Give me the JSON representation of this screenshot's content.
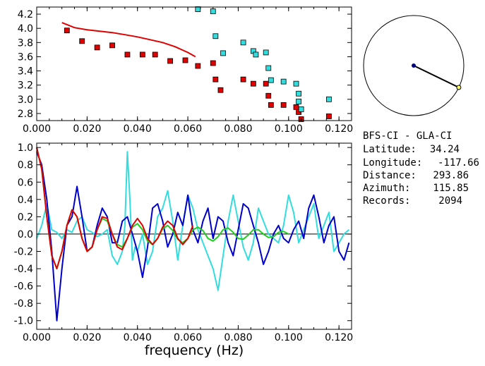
{
  "info_panel": {
    "station_pair": "BFS-CI  -  GLA-CI",
    "rows": [
      {
        "label": "Latitude:",
        "value": "34.24"
      },
      {
        "label": "Longitude:",
        "value": "-117.66"
      },
      {
        "label": "Distance:",
        "value": "293.86"
      },
      {
        "label": "Azimuth:",
        "value": "115.85"
      },
      {
        "label": "Records:",
        "value": "2094"
      }
    ]
  },
  "azimuth_dial": {
    "azimuth_deg": 115.85,
    "line_color": "#000000",
    "station_color": "#000080",
    "endpoint_color": "#ffff66"
  },
  "chart_data": [
    {
      "type": "scatter",
      "xlim": [
        0.0,
        0.125
      ],
      "ylim": [
        2.7,
        4.3
      ],
      "x_ticks": [
        0.0,
        0.02,
        0.04,
        0.06,
        0.08,
        0.1,
        0.12
      ],
      "x_tick_labels": [
        "0.000",
        "0.020",
        "0.040",
        "0.060",
        "0.080",
        "0.100",
        "0.120"
      ],
      "y_ticks": [
        2.8,
        3.0,
        3.2,
        3.4,
        3.6,
        3.8,
        4.0,
        4.2
      ],
      "y_tick_labels": [
        "2.8",
        "3.0",
        "3.2",
        "3.4",
        "3.6",
        "3.8",
        "4.0",
        "4.2"
      ],
      "series": [
        {
          "kind": "line",
          "color": "#e00000",
          "x": [
            0.01,
            0.015,
            0.02,
            0.025,
            0.03,
            0.035,
            0.04,
            0.045,
            0.05,
            0.055,
            0.06,
            0.063
          ],
          "y": [
            4.08,
            4.01,
            3.98,
            3.96,
            3.94,
            3.91,
            3.88,
            3.84,
            3.8,
            3.74,
            3.66,
            3.6
          ]
        },
        {
          "kind": "markers",
          "color": "#e00000",
          "x": [
            0.012,
            0.018,
            0.024,
            0.03,
            0.036,
            0.042,
            0.047,
            0.053,
            0.059,
            0.064,
            0.07,
            0.071,
            0.073,
            0.082,
            0.086,
            0.091,
            0.092,
            0.093,
            0.098,
            0.103,
            0.104,
            0.105,
            0.116
          ],
          "y": [
            3.97,
            3.82,
            3.73,
            3.76,
            3.63,
            3.63,
            3.63,
            3.54,
            3.55,
            3.47,
            3.51,
            3.28,
            3.13,
            3.28,
            3.22,
            3.22,
            3.05,
            2.92,
            2.92,
            2.89,
            2.82,
            2.72,
            2.76
          ]
        },
        {
          "kind": "markers",
          "color": "#33dddd",
          "x": [
            0.064,
            0.07,
            0.071,
            0.074,
            0.082,
            0.086,
            0.087,
            0.091,
            0.092,
            0.093,
            0.098,
            0.103,
            0.104,
            0.104,
            0.105,
            0.116
          ],
          "y": [
            4.27,
            4.24,
            3.89,
            3.65,
            3.8,
            3.68,
            3.63,
            3.66,
            3.44,
            3.27,
            3.25,
            3.22,
            3.08,
            2.97,
            2.86,
            3.0
          ]
        }
      ]
    },
    {
      "type": "line",
      "xlabel": "frequency  (Hz)",
      "xlim": [
        0.0,
        0.125
      ],
      "ylim": [
        -1.1,
        1.05
      ],
      "x_ticks": [
        0.0,
        0.02,
        0.04,
        0.06,
        0.08,
        0.1,
        0.12
      ],
      "x_tick_labels": [
        "0.000",
        "0.020",
        "0.040",
        "0.060",
        "0.080",
        "0.100",
        "0.120"
      ],
      "y_ticks": [
        1.0,
        0.8,
        0.6,
        0.4,
        0.2,
        0.0,
        -0.2,
        -0.4,
        -0.6,
        -0.8,
        -1.0
      ],
      "y_tick_labels": [
        "1.0",
        "0.8",
        "0.6",
        "0.4",
        "0.2",
        "0.0",
        "-0.2",
        "-0.4",
        "-0.6",
        "-0.8",
        "-1.0"
      ],
      "zero_line": true,
      "series": [
        {
          "color": "#33dddd",
          "x": [
            0.0,
            0.002,
            0.004,
            0.006,
            0.008,
            0.01,
            0.012,
            0.014,
            0.016,
            0.018,
            0.02,
            0.022,
            0.024,
            0.026,
            0.028,
            0.03,
            0.032,
            0.034,
            0.035,
            0.036,
            0.037,
            0.038,
            0.039,
            0.04,
            0.042,
            0.044,
            0.046,
            0.048,
            0.05,
            0.052,
            0.054,
            0.056,
            0.058,
            0.06,
            0.062,
            0.064,
            0.066,
            0.068,
            0.07,
            0.072,
            0.074,
            0.076,
            0.078,
            0.08,
            0.082,
            0.084,
            0.086,
            0.088,
            0.09,
            0.092,
            0.094,
            0.096,
            0.098,
            0.1,
            0.102,
            0.104,
            0.106,
            0.108,
            0.11,
            0.112,
            0.114,
            0.116,
            0.118,
            0.12,
            0.122,
            0.124
          ],
          "y": [
            -0.05,
            0.1,
            0.35,
            0.05,
            0.02,
            -0.05,
            0.05,
            0.02,
            0.15,
            0.2,
            0.05,
            0.02,
            -0.03,
            0.0,
            0.05,
            -0.25,
            -0.35,
            -0.2,
            0.1,
            0.95,
            0.4,
            -0.3,
            -0.15,
            -0.2,
            0.0,
            -0.35,
            -0.2,
            0.2,
            0.3,
            0.5,
            0.15,
            -0.3,
            0.1,
            0.45,
            0.3,
            0.05,
            -0.1,
            -0.25,
            -0.4,
            -0.65,
            -0.25,
            0.15,
            0.45,
            0.15,
            -0.15,
            -0.3,
            -0.1,
            0.3,
            0.15,
            0.0,
            -0.05,
            -0.1,
            0.1,
            0.45,
            0.25,
            -0.1,
            0.05,
            0.2,
            0.35,
            -0.05,
            0.1,
            0.25,
            -0.2,
            -0.1,
            0.0,
            0.05
          ]
        },
        {
          "color": "#0000cc",
          "x": [
            0.0,
            0.002,
            0.004,
            0.006,
            0.008,
            0.01,
            0.012,
            0.014,
            0.016,
            0.018,
            0.02,
            0.022,
            0.024,
            0.026,
            0.028,
            0.03,
            0.032,
            0.034,
            0.036,
            0.038,
            0.04,
            0.042,
            0.044,
            0.046,
            0.048,
            0.05,
            0.052,
            0.054,
            0.056,
            0.058,
            0.06,
            0.062,
            0.064,
            0.066,
            0.068,
            0.07,
            0.072,
            0.074,
            0.076,
            0.078,
            0.08,
            0.082,
            0.084,
            0.086,
            0.088,
            0.09,
            0.092,
            0.094,
            0.096,
            0.098,
            0.1,
            0.102,
            0.104,
            0.106,
            0.108,
            0.11,
            0.112,
            0.114,
            0.116,
            0.118,
            0.12,
            0.122,
            0.124
          ],
          "y": [
            0.95,
            0.8,
            0.4,
            -0.2,
            -1.0,
            -0.4,
            0.1,
            0.2,
            0.55,
            0.2,
            -0.2,
            -0.15,
            0.1,
            0.3,
            0.2,
            -0.1,
            -0.1,
            0.15,
            0.2,
            0.0,
            -0.2,
            -0.5,
            -0.15,
            0.3,
            0.35,
            0.15,
            -0.15,
            0.0,
            0.25,
            0.1,
            0.45,
            0.05,
            -0.1,
            0.15,
            0.3,
            -0.05,
            0.2,
            0.15,
            -0.1,
            -0.25,
            0.05,
            0.35,
            0.3,
            0.1,
            -0.1,
            -0.35,
            -0.2,
            0.0,
            0.1,
            -0.05,
            -0.1,
            0.05,
            0.15,
            -0.05,
            0.3,
            0.45,
            0.2,
            -0.1,
            0.1,
            0.2,
            -0.2,
            -0.3,
            -0.1
          ]
        },
        {
          "color": "#22cc22",
          "x": [
            0.0,
            0.002,
            0.004,
            0.006,
            0.008,
            0.01,
            0.012,
            0.014,
            0.016,
            0.018,
            0.02,
            0.022,
            0.024,
            0.026,
            0.028,
            0.03,
            0.032,
            0.034,
            0.036,
            0.038,
            0.04,
            0.042,
            0.044,
            0.046,
            0.048,
            0.05,
            0.052,
            0.054,
            0.056,
            0.058,
            0.06,
            0.062,
            0.064,
            0.066,
            0.068,
            0.07,
            0.072,
            0.074,
            0.076,
            0.078,
            0.08,
            0.082,
            0.084,
            0.086,
            0.088,
            0.09,
            0.092,
            0.094,
            0.096,
            0.098,
            0.1
          ],
          "y": [
            1.0,
            0.75,
            0.2,
            -0.25,
            -0.4,
            -0.2,
            0.1,
            0.28,
            0.2,
            -0.05,
            -0.2,
            -0.15,
            0.05,
            0.18,
            0.15,
            0.0,
            -0.12,
            -0.15,
            -0.05,
            0.08,
            0.12,
            0.05,
            -0.08,
            -0.12,
            -0.05,
            0.06,
            0.1,
            0.04,
            -0.06,
            -0.1,
            -0.05,
            0.05,
            0.08,
            0.04,
            -0.05,
            -0.08,
            -0.03,
            0.05,
            0.07,
            0.02,
            -0.05,
            -0.06,
            -0.01,
            0.05,
            0.05,
            0.0,
            -0.04,
            -0.03,
            0.02,
            0.03,
            0.0
          ]
        },
        {
          "color": "#e00000",
          "x": [
            0.0,
            0.002,
            0.004,
            0.006,
            0.008,
            0.01,
            0.012,
            0.014,
            0.016,
            0.018,
            0.02,
            0.022,
            0.024,
            0.026,
            0.028,
            0.03,
            0.032,
            0.034,
            0.036,
            0.038,
            0.04,
            0.042,
            0.044,
            0.046,
            0.048,
            0.05,
            0.052,
            0.054,
            0.056,
            0.058,
            0.06,
            0.062
          ],
          "y": [
            1.0,
            0.75,
            0.2,
            -0.25,
            -0.4,
            -0.2,
            0.1,
            0.28,
            0.2,
            -0.05,
            -0.2,
            -0.15,
            0.05,
            0.2,
            0.18,
            0.0,
            -0.15,
            -0.18,
            -0.05,
            0.1,
            0.18,
            0.1,
            -0.05,
            -0.12,
            -0.05,
            0.08,
            0.15,
            0.1,
            -0.05,
            -0.12,
            -0.05,
            0.1
          ]
        }
      ]
    }
  ]
}
